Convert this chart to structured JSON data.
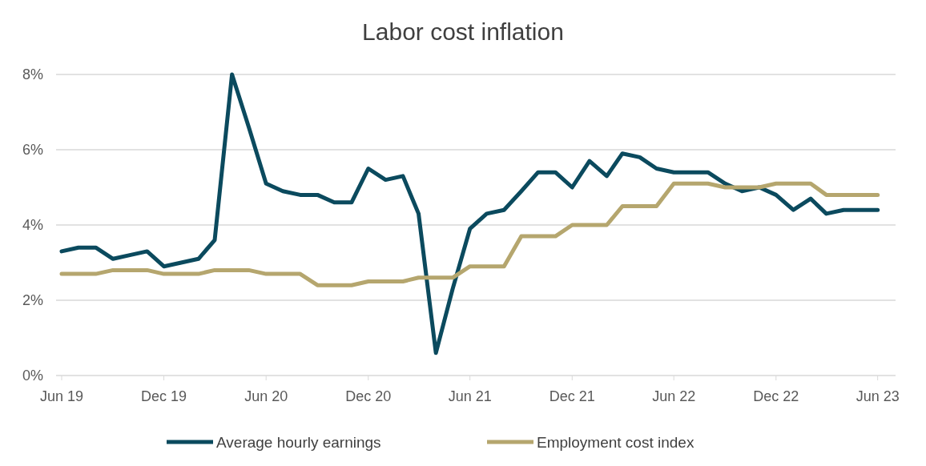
{
  "chart_data": {
    "type": "line",
    "title": "Labor cost inflation",
    "x": [
      "2019-06",
      "2019-07",
      "2019-08",
      "2019-09",
      "2019-10",
      "2019-11",
      "2019-12",
      "2020-01",
      "2020-02",
      "2020-03",
      "2020-04",
      "2020-05",
      "2020-06",
      "2020-07",
      "2020-08",
      "2020-09",
      "2020-10",
      "2020-11",
      "2020-12",
      "2021-01",
      "2021-02",
      "2021-03",
      "2021-04",
      "2021-05",
      "2021-06",
      "2021-07",
      "2021-08",
      "2021-09",
      "2021-10",
      "2021-11",
      "2021-12",
      "2022-01",
      "2022-02",
      "2022-03",
      "2022-04",
      "2022-05",
      "2022-06",
      "2022-07",
      "2022-08",
      "2022-09",
      "2022-10",
      "2022-11",
      "2022-12",
      "2023-01",
      "2023-02",
      "2023-03",
      "2023-04",
      "2023-05",
      "2023-06"
    ],
    "series": [
      {
        "name": "Average hourly earnings",
        "color": "#0b4a5e",
        "values": [
          3.3,
          3.4,
          3.4,
          3.1,
          3.2,
          3.3,
          2.9,
          3.0,
          3.1,
          3.6,
          8.0,
          6.6,
          5.1,
          4.9,
          4.8,
          4.8,
          4.6,
          4.6,
          5.5,
          5.2,
          5.3,
          4.3,
          0.6,
          2.3,
          3.9,
          4.3,
          4.4,
          4.9,
          5.4,
          5.4,
          5.0,
          5.7,
          5.3,
          5.9,
          5.8,
          5.5,
          5.4,
          5.4,
          5.4,
          5.1,
          4.9,
          5.0,
          4.8,
          4.4,
          4.7,
          4.3,
          4.4,
          4.4,
          4.4
        ]
      },
      {
        "name": "Employment cost index",
        "color": "#b5a66e",
        "values": [
          2.7,
          2.7,
          2.7,
          2.8,
          2.8,
          2.8,
          2.7,
          2.7,
          2.7,
          2.8,
          2.8,
          2.8,
          2.7,
          2.7,
          2.7,
          2.4,
          2.4,
          2.4,
          2.5,
          2.5,
          2.5,
          2.6,
          2.6,
          2.6,
          2.9,
          2.9,
          2.9,
          3.7,
          3.7,
          3.7,
          4.0,
          4.0,
          4.0,
          4.5,
          4.5,
          4.5,
          5.1,
          5.1,
          5.1,
          5.0,
          5.0,
          5.0,
          5.1,
          5.1,
          5.1,
          4.8,
          4.8,
          4.8,
          4.8
        ]
      }
    ],
    "xlim": [
      "2019-05-22",
      "2023-07-03"
    ],
    "xticks": [
      {
        "value": "2019-06",
        "label": "Jun 19"
      },
      {
        "value": "2019-12",
        "label": "Dec 19"
      },
      {
        "value": "2020-06",
        "label": "Jun 20"
      },
      {
        "value": "2020-12",
        "label": "Dec 20"
      },
      {
        "value": "2021-06",
        "label": "Jun 21"
      },
      {
        "value": "2021-12",
        "label": "Dec 21"
      },
      {
        "value": "2022-06",
        "label": "Jun 22"
      },
      {
        "value": "2022-12",
        "label": "Dec 22"
      },
      {
        "value": "2023-06",
        "label": "Jun 23"
      }
    ],
    "ylim": [
      0,
      8
    ],
    "yticks": [
      {
        "value": 0,
        "label": "0%"
      },
      {
        "value": 2,
        "label": "2%"
      },
      {
        "value": 4,
        "label": "4%"
      },
      {
        "value": 6,
        "label": "6%"
      },
      {
        "value": 8,
        "label": "8%"
      }
    ],
    "grid": "y",
    "legend": "bottom",
    "marker": "none",
    "line_style": "solid"
  }
}
